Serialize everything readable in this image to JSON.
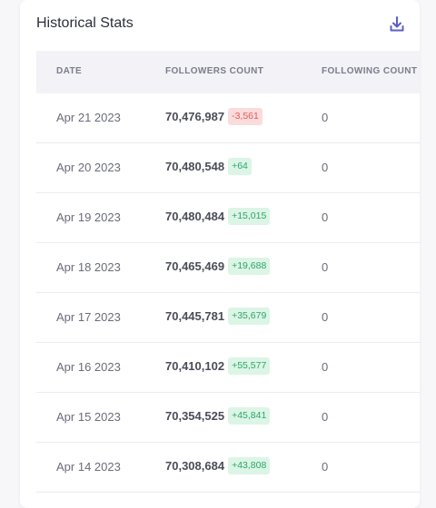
{
  "card": {
    "title": "Historical Stats",
    "download_icon": "download-icon"
  },
  "table": {
    "headers": {
      "date": "DATE",
      "followers": "FOLLOWERS COUNT",
      "following": "FOLLOWING COUNT"
    },
    "rows": [
      {
        "date": "Apr 21 2023",
        "followers": "70,476,987",
        "delta": "-3,561",
        "trend": "neg",
        "following": "0"
      },
      {
        "date": "Apr 20 2023",
        "followers": "70,480,548",
        "delta": "+64",
        "trend": "pos",
        "following": "0"
      },
      {
        "date": "Apr 19 2023",
        "followers": "70,480,484",
        "delta": "+15,015",
        "trend": "pos",
        "following": "0"
      },
      {
        "date": "Apr 18 2023",
        "followers": "70,465,469",
        "delta": "+19,688",
        "trend": "pos",
        "following": "0"
      },
      {
        "date": "Apr 17 2023",
        "followers": "70,445,781",
        "delta": "+35,679",
        "trend": "pos",
        "following": "0"
      },
      {
        "date": "Apr 16 2023",
        "followers": "70,410,102",
        "delta": "+55,577",
        "trend": "pos",
        "following": "0"
      },
      {
        "date": "Apr 15 2023",
        "followers": "70,354,525",
        "delta": "+45,841",
        "trend": "pos",
        "following": "0"
      },
      {
        "date": "Apr 14 2023",
        "followers": "70,308,684",
        "delta": "+43,808",
        "trend": "pos",
        "following": "0"
      }
    ]
  },
  "colors": {
    "accent": "#5b5fc7",
    "positive_bg": "#dcf5e6",
    "positive_text": "#2fa56a",
    "negative_bg": "#fbdcdc",
    "negative_text": "#e25a5a"
  }
}
